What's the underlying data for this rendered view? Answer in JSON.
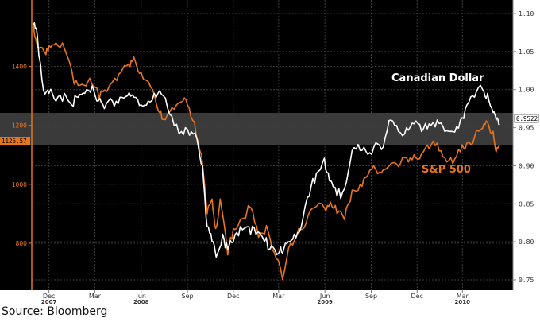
{
  "source_text": "Source: Bloomberg",
  "chart_data": {
    "type": "line",
    "title": "",
    "grid": true,
    "background": "#000000",
    "left_axis": {
      "ticks": [
        800,
        1000,
        1200,
        1400
      ],
      "range": [
        708,
        1604
      ],
      "color": "#e8741c"
    },
    "right_axis": {
      "ticks": [
        "0.75",
        "0.80",
        "0.85",
        "0.90",
        "0.95",
        "1.00",
        "1.05",
        "1.10"
      ],
      "range": [
        0.75,
        1.1
      ],
      "color": "#bbbbbb"
    },
    "x_ticks": [
      {
        "label": "Dec",
        "year": "2007",
        "date": "2007-12-01"
      },
      {
        "label": "Mar",
        "year": "",
        "date": "2008-03-01"
      },
      {
        "label": "Jun",
        "year": "2008",
        "date": "2008-06-01"
      },
      {
        "label": "Sep",
        "year": "",
        "date": "2008-09-01"
      },
      {
        "label": "Dec",
        "year": "",
        "date": "2008-12-01"
      },
      {
        "label": "Mar",
        "year": "",
        "date": "2009-03-01"
      },
      {
        "label": "Jun",
        "year": "2009",
        "date": "2009-06-01"
      },
      {
        "label": "Sep",
        "year": "",
        "date": "2009-09-01"
      },
      {
        "label": "Dec",
        "year": "",
        "date": "2009-12-01"
      },
      {
        "label": "Mar",
        "year": "2010",
        "date": "2010-03-01"
      }
    ],
    "last_value_tags": {
      "canadian_dollar": "0.9522",
      "sp500": "1126.57"
    },
    "series": [
      {
        "name": "Canadian Dollar",
        "axis": "right",
        "color": "#ffffff",
        "points": [
          [
            "2007-10-31",
            1.085
          ],
          [
            "2007-11-08",
            1.07
          ],
          [
            "2007-11-20",
            1.0
          ],
          [
            "2007-12-01",
            0.995
          ],
          [
            "2007-12-15",
            0.985
          ],
          [
            "2008-01-01",
            0.995
          ],
          [
            "2008-01-15",
            0.98
          ],
          [
            "2008-01-28",
            0.99
          ],
          [
            "2008-02-10",
            0.995
          ],
          [
            "2008-02-25",
            1.005
          ],
          [
            "2008-03-08",
            0.985
          ],
          [
            "2008-03-20",
            0.975
          ],
          [
            "2008-04-05",
            0.985
          ],
          [
            "2008-04-20",
            0.99
          ],
          [
            "2008-05-05",
            0.992
          ],
          [
            "2008-05-18",
            0.99
          ],
          [
            "2008-06-01",
            0.98
          ],
          [
            "2008-06-15",
            0.985
          ],
          [
            "2008-07-01",
            0.99
          ],
          [
            "2008-07-15",
            0.992
          ],
          [
            "2008-08-01",
            0.965
          ],
          [
            "2008-08-20",
            0.945
          ],
          [
            "2008-09-05",
            0.94
          ],
          [
            "2008-09-20",
            0.935
          ],
          [
            "2008-10-01",
            0.9
          ],
          [
            "2008-10-10",
            0.82
          ],
          [
            "2008-10-20",
            0.8
          ],
          [
            "2008-10-28",
            0.78
          ],
          [
            "2008-11-10",
            0.81
          ],
          [
            "2008-11-20",
            0.79
          ],
          [
            "2008-12-01",
            0.8
          ],
          [
            "2008-12-15",
            0.82
          ],
          [
            "2009-01-01",
            0.82
          ],
          [
            "2009-01-15",
            0.81
          ],
          [
            "2009-02-01",
            0.8
          ],
          [
            "2009-02-15",
            0.795
          ],
          [
            "2009-03-01",
            0.785
          ],
          [
            "2009-03-09",
            0.785
          ],
          [
            "2009-03-20",
            0.8
          ],
          [
            "2009-04-01",
            0.81
          ],
          [
            "2009-04-15",
            0.82
          ],
          [
            "2009-05-01",
            0.86
          ],
          [
            "2009-05-15",
            0.89
          ],
          [
            "2009-05-31",
            0.91
          ],
          [
            "2009-06-10",
            0.88
          ],
          [
            "2009-06-25",
            0.86
          ],
          [
            "2009-07-10",
            0.87
          ],
          [
            "2009-07-25",
            0.92
          ],
          [
            "2009-08-10",
            0.92
          ],
          [
            "2009-08-25",
            0.915
          ],
          [
            "2009-09-10",
            0.93
          ],
          [
            "2009-09-25",
            0.925
          ],
          [
            "2009-10-10",
            0.96
          ],
          [
            "2009-10-25",
            0.945
          ],
          [
            "2009-11-10",
            0.95
          ],
          [
            "2009-11-25",
            0.955
          ],
          [
            "2009-12-10",
            0.945
          ],
          [
            "2009-12-25",
            0.955
          ],
          [
            "2010-01-10",
            0.96
          ],
          [
            "2010-01-25",
            0.945
          ],
          [
            "2010-02-10",
            0.945
          ],
          [
            "2010-02-25",
            0.96
          ],
          [
            "2010-03-10",
            0.98
          ],
          [
            "2010-03-25",
            0.99
          ],
          [
            "2010-04-10",
            1.0
          ],
          [
            "2010-04-20",
            0.995
          ],
          [
            "2010-05-01",
            0.97
          ],
          [
            "2010-05-07",
            0.96
          ],
          [
            "2010-05-14",
            0.955
          ]
        ]
      },
      {
        "name": "S&P 500",
        "axis": "left",
        "color": "#e8741c",
        "points": [
          [
            "2007-10-31",
            1540
          ],
          [
            "2007-11-10",
            1460
          ],
          [
            "2007-11-25",
            1440
          ],
          [
            "2007-12-01",
            1470
          ],
          [
            "2007-12-15",
            1480
          ],
          [
            "2008-01-01",
            1460
          ],
          [
            "2008-01-20",
            1340
          ],
          [
            "2008-02-05",
            1340
          ],
          [
            "2008-02-20",
            1360
          ],
          [
            "2008-03-10",
            1290
          ],
          [
            "2008-03-20",
            1320
          ],
          [
            "2008-04-10",
            1360
          ],
          [
            "2008-04-25",
            1390
          ],
          [
            "2008-05-10",
            1400
          ],
          [
            "2008-05-20",
            1420
          ],
          [
            "2008-06-01",
            1380
          ],
          [
            "2008-06-20",
            1330
          ],
          [
            "2008-07-05",
            1250
          ],
          [
            "2008-07-15",
            1220
          ],
          [
            "2008-08-01",
            1260
          ],
          [
            "2008-08-20",
            1280
          ],
          [
            "2008-09-01",
            1270
          ],
          [
            "2008-09-15",
            1210
          ],
          [
            "2008-09-29",
            1100
          ],
          [
            "2008-10-10",
            900
          ],
          [
            "2008-10-20",
            950
          ],
          [
            "2008-10-27",
            850
          ],
          [
            "2008-11-05",
            950
          ],
          [
            "2008-11-20",
            760
          ],
          [
            "2008-12-01",
            850
          ],
          [
            "2008-12-15",
            880
          ],
          [
            "2009-01-05",
            920
          ],
          [
            "2009-01-20",
            820
          ],
          [
            "2009-02-05",
            860
          ],
          [
            "2009-02-20",
            770
          ],
          [
            "2009-03-09",
            676
          ],
          [
            "2009-03-25",
            800
          ],
          [
            "2009-04-10",
            850
          ],
          [
            "2009-04-25",
            870
          ],
          [
            "2009-05-10",
            920
          ],
          [
            "2009-05-31",
            920
          ],
          [
            "2009-06-12",
            940
          ],
          [
            "2009-06-25",
            900
          ],
          [
            "2009-07-10",
            880
          ],
          [
            "2009-07-25",
            980
          ],
          [
            "2009-08-10",
            1000
          ],
          [
            "2009-08-25",
            1030
          ],
          [
            "2009-09-10",
            1050
          ],
          [
            "2009-09-25",
            1050
          ],
          [
            "2009-10-10",
            1070
          ],
          [
            "2009-10-25",
            1060
          ],
          [
            "2009-11-10",
            1090
          ],
          [
            "2009-11-25",
            1100
          ],
          [
            "2009-12-10",
            1105
          ],
          [
            "2009-12-25",
            1120
          ],
          [
            "2010-01-10",
            1140
          ],
          [
            "2010-01-25",
            1090
          ],
          [
            "2010-02-10",
            1070
          ],
          [
            "2010-02-25",
            1110
          ],
          [
            "2010-03-10",
            1140
          ],
          [
            "2010-03-25",
            1160
          ],
          [
            "2010-04-10",
            1190
          ],
          [
            "2010-04-20",
            1210
          ],
          [
            "2010-05-01",
            1180
          ],
          [
            "2010-05-07",
            1110
          ],
          [
            "2010-05-14",
            1130
          ]
        ]
      }
    ],
    "series_labels": [
      "Canadian Dollar",
      "S&P 500"
    ]
  }
}
